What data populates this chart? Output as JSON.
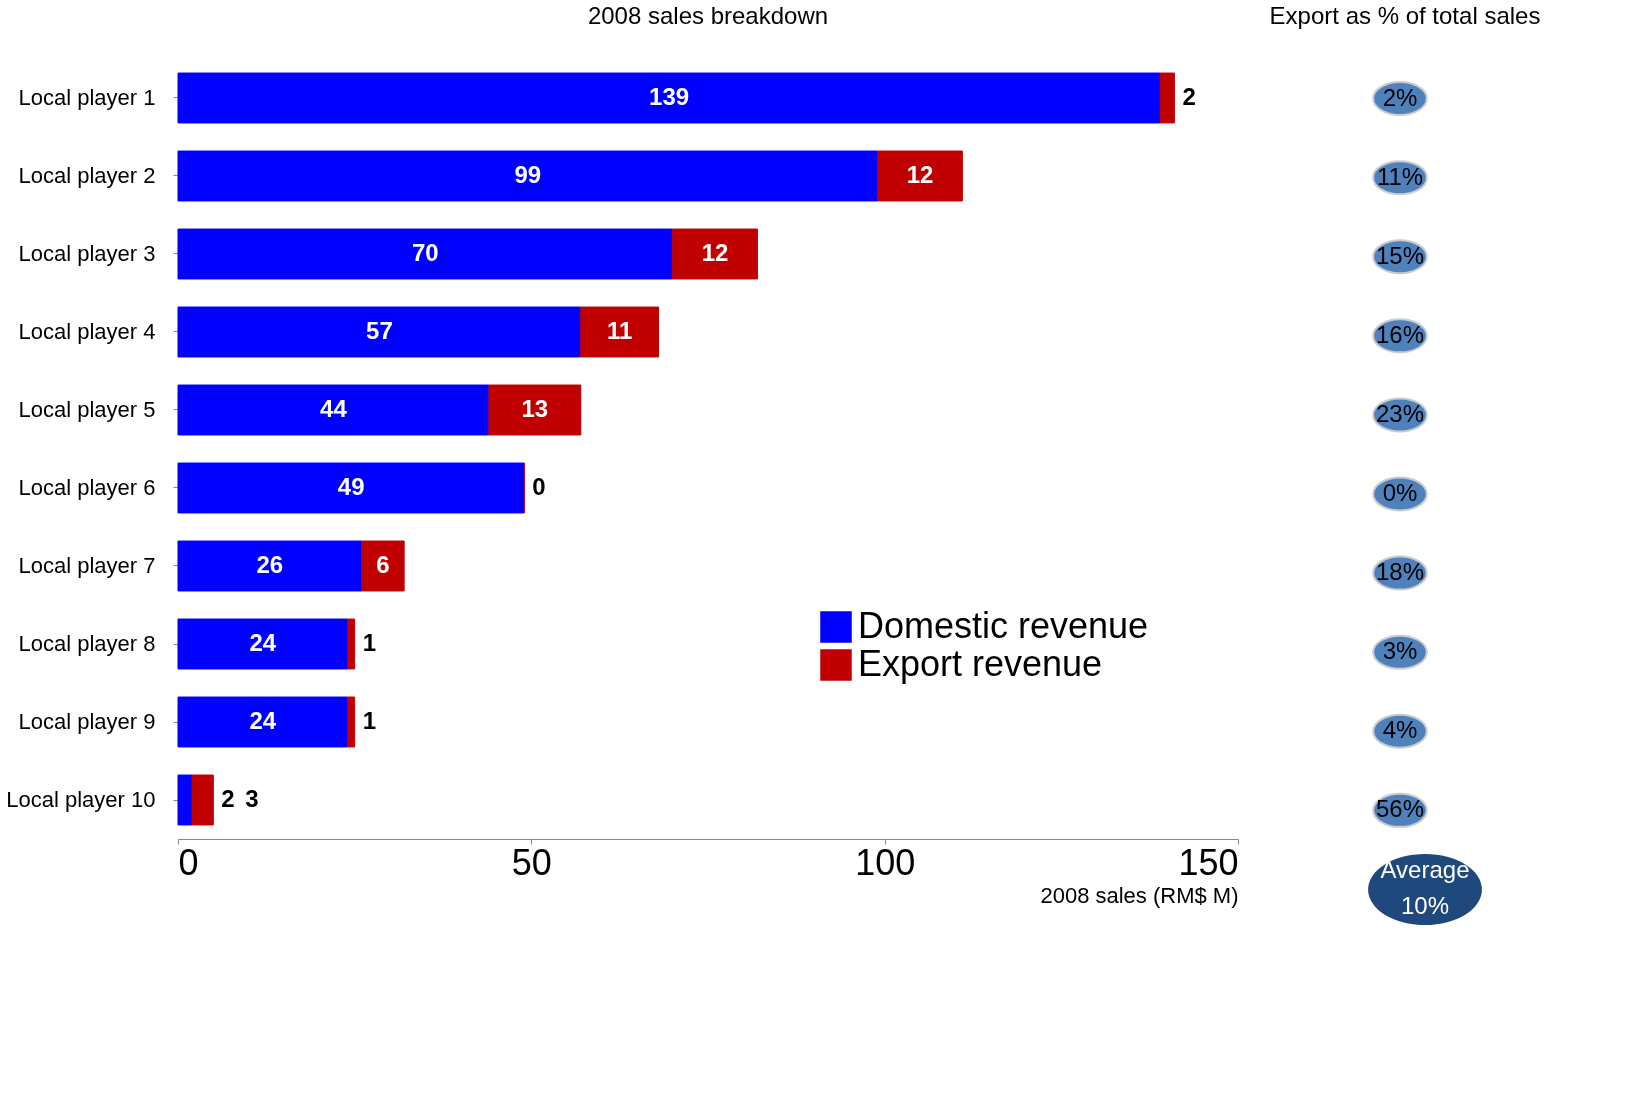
{
  "chart_data": [
    {
      "type": "bar",
      "orientation": "horizontal",
      "stacked": true,
      "title": "2008 sales breakdown",
      "xlabel": "2008 sales (RM$ M)",
      "categories": [
        "Local player 1",
        "Local player 2",
        "Local player 3",
        "Local player 4",
        "Local player 5",
        "Local player 6",
        "Local player 7",
        "Local player 8",
        "Local player 9",
        "Local player 10"
      ],
      "series": [
        {
          "name": "Domestic revenue",
          "color": "#0000ff",
          "values": [
            139,
            99,
            70,
            57,
            44,
            49,
            26,
            24,
            24,
            2
          ]
        },
        {
          "name": "Export revenue",
          "color": "#c00000",
          "values": [
            2,
            12,
            12,
            11,
            13,
            0,
            6,
            1,
            1,
            3
          ]
        }
      ],
      "xlim": [
        0,
        150
      ],
      "xticks": [
        0,
        50,
        100,
        150
      ],
      "data_labels": true,
      "legend": "bottom right",
      "grid": false
    },
    {
      "type": "other",
      "title": "Export as % of total sales",
      "value_labels": [
        "2%",
        "11%",
        "15%",
        "16%",
        "23%",
        "0%",
        "18%",
        "3%",
        "4%",
        "56%"
      ],
      "annotations": [
        "Average 10%"
      ]
    }
  ]
}
